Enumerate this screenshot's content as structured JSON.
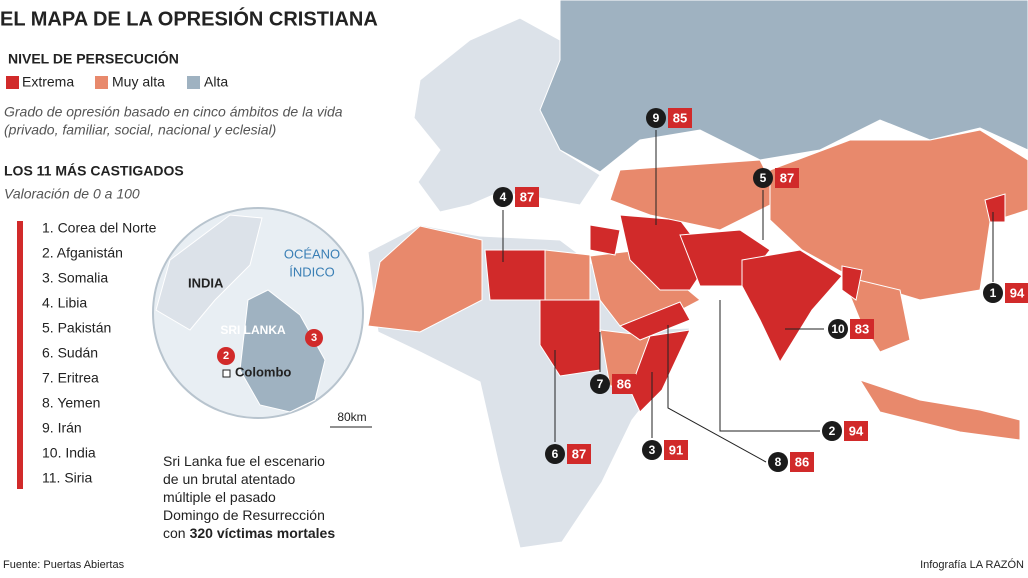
{
  "title": "EL MAPA DE LA OPRESIÓN CRISTIANA",
  "legend": {
    "title": "NIVEL DE PERSECUCIÓN",
    "items": [
      "Extrema",
      "Muy alta",
      "Alta"
    ]
  },
  "description": [
    "Grado de opresión basado en cinco ámbitos de la vida",
    "(privado, familiar, social, nacional y eclesial)"
  ],
  "ranking": {
    "title": "LOS 11 MÁS CASTIGADOS",
    "subtitle": "Valoración de 0 a 100",
    "items": [
      "1. Corea del Norte",
      "2. Afganistán",
      "3. Somalia",
      "4. Libia",
      "5. Pakistán",
      "6. Sudán",
      "7. Eritrea",
      "8. Yemen",
      "9. Irán",
      "10. India",
      "11. Siria"
    ]
  },
  "callouts": [
    {
      "rank": 9,
      "score": 85
    },
    {
      "rank": 4,
      "score": 87
    },
    {
      "rank": 5,
      "score": 87
    },
    {
      "rank": 1,
      "score": 94
    },
    {
      "rank": 10,
      "score": 83
    },
    {
      "rank": 7,
      "score": 86
    },
    {
      "rank": 2,
      "score": 94
    },
    {
      "rank": 3,
      "score": 91
    },
    {
      "rank": 6,
      "score": 87
    },
    {
      "rank": 8,
      "score": 86
    }
  ],
  "inset": {
    "country": "INDIA",
    "ocean": [
      "OCÉANO",
      "ÍNDICO"
    ],
    "island": "SRI LANKA",
    "city": "Colombo",
    "markers": [
      "2",
      "3"
    ],
    "scale": "80km"
  },
  "note": {
    "lines": [
      "Sri Lanka fue el escenario",
      "de un brutal atentado",
      "múltiple el pasado",
      "Domingo de Resurrección"
    ],
    "prefix": "con",
    "highlight": "320 víctimas mortales"
  },
  "source": "Fuente: Puertas Abiertas",
  "credit": "Infografía LA RAZÓN"
}
